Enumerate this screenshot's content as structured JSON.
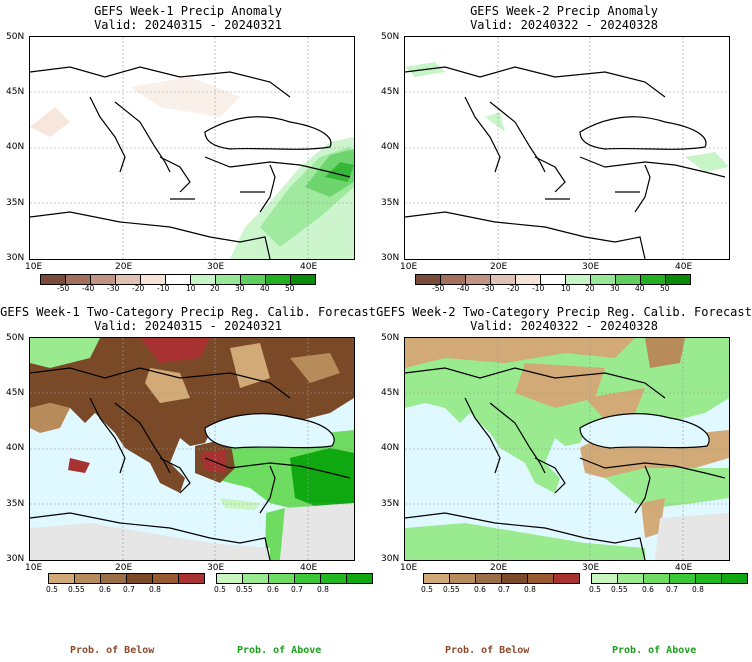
{
  "panels": [
    {
      "title": "GEFS Week-1 Precip Anomaly",
      "valid": "Valid: 20240315 - 20240321"
    },
    {
      "title": "GEFS Week-2 Precip Anomaly",
      "valid": "Valid: 20240322 - 20240328"
    },
    {
      "title": "GEFS Week-1 Two-Category Precip Reg. Calib. Forecast",
      "valid": "Valid: 20240315 - 20240321"
    },
    {
      "title": "GEFS Week-2 Two-Category Precip Reg. Calib. Forecast",
      "valid": "Valid: 20240322 - 20240328"
    }
  ],
  "axes": {
    "lat_labels": [
      "50N",
      "45N",
      "40N",
      "35N",
      "30N"
    ],
    "lon_labels": [
      "10E",
      "20E",
      "30E",
      "40E"
    ]
  },
  "anomaly_colorbar": {
    "labels": [
      "-50",
      "-40",
      "-30",
      "-20",
      "-10",
      "10",
      "20",
      "30",
      "40",
      "50"
    ],
    "colors": [
      "#7a4a3a",
      "#a3705e",
      "#c09585",
      "#e0c2b4",
      "#f5e3d8",
      "#ffffff",
      "#c8f5c8",
      "#96e896",
      "#5fd05f",
      "#22b022",
      "#0a8a0a"
    ]
  },
  "prob_colorbars": {
    "below": {
      "labels": [
        "0.5",
        "0.55",
        "0.6",
        "0.7",
        "0.8"
      ],
      "colors": [
        "#d2aa78",
        "#b88c5a",
        "#9a6e46",
        "#7a4a28",
        "#a83232"
      ]
    },
    "above": {
      "labels": [
        "0.5",
        "0.55",
        "0.6",
        "0.7",
        "0.8"
      ],
      "colors": [
        "#c8f5c0",
        "#9aeb90",
        "#6ddc60",
        "#38c838",
        "#10a810"
      ]
    }
  },
  "legend": {
    "below": "Prob. of Below",
    "above": "Prob. of Above"
  },
  "colors": {
    "below_text": "#8b4a2a",
    "above_text": "#1aa01a",
    "sea": "#e0f8ff",
    "land_neutral": "#e6e6e6"
  }
}
